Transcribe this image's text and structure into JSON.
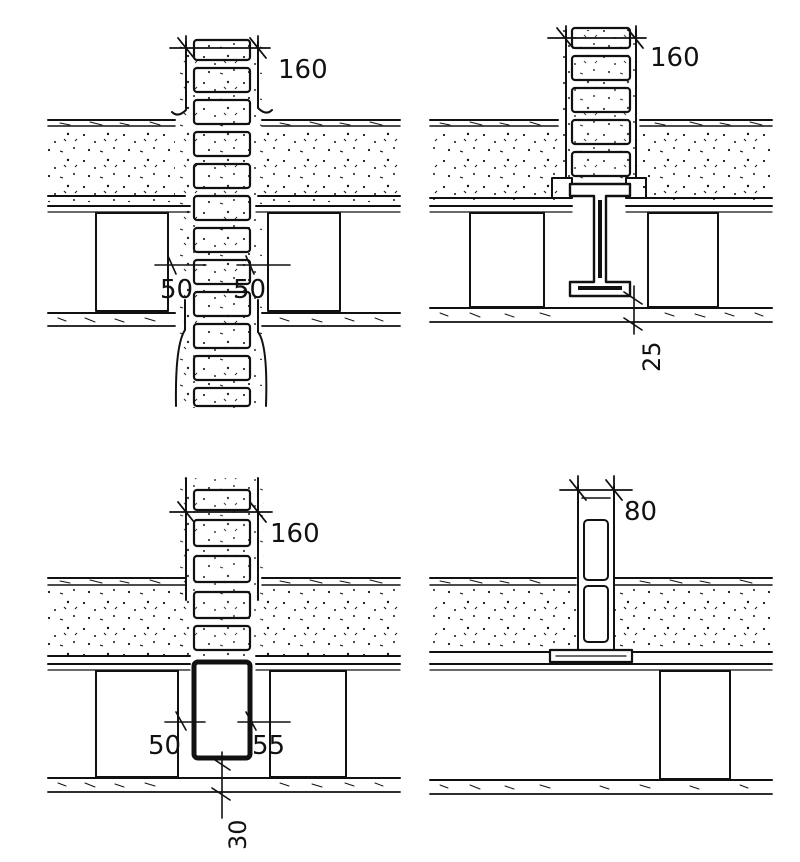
{
  "details": [
    {
      "id": "top-left",
      "wall_thickness": "160",
      "gap_left": "50",
      "gap_right": "50",
      "support": "timber joists"
    },
    {
      "id": "top-right",
      "wall_thickness": "160",
      "bearing_offset": "25",
      "support": "steel I-beam"
    },
    {
      "id": "bottom-left",
      "wall_thickness": "160",
      "gap_left": "50",
      "gap_right": "55",
      "bearing_offset": "30",
      "support": "steel box section"
    },
    {
      "id": "bottom-right",
      "wall_thickness": "80",
      "support": "partition on floor"
    }
  ],
  "colors": {
    "ink": "#111111",
    "paper": "#ffffff"
  }
}
